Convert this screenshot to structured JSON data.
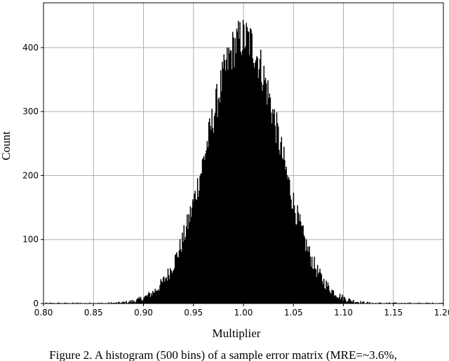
{
  "caption": "Figure 2. A histogram (500 bins) of a sample error matrix (MRE=~3.6%,",
  "chart_data": {
    "type": "bar",
    "bins": 500,
    "xlabel": "Multiplier",
    "ylabel": "Count",
    "xlim": [
      0.8,
      1.2
    ],
    "ylim": [
      0,
      470
    ],
    "grid": true,
    "bar_color": "#000000",
    "grid_color": "#b0b0b0",
    "x_ticks": [
      "0.80",
      "0.85",
      "0.90",
      "0.95",
      "1.00",
      "1.05",
      "1.10",
      "1.15",
      "1.20"
    ],
    "y_ticks": [
      "0",
      "100",
      "200",
      "300",
      "400"
    ],
    "distribution": {
      "center": 1.0,
      "peak_count": 415,
      "std_dev": 0.036,
      "max_count": 458
    }
  }
}
